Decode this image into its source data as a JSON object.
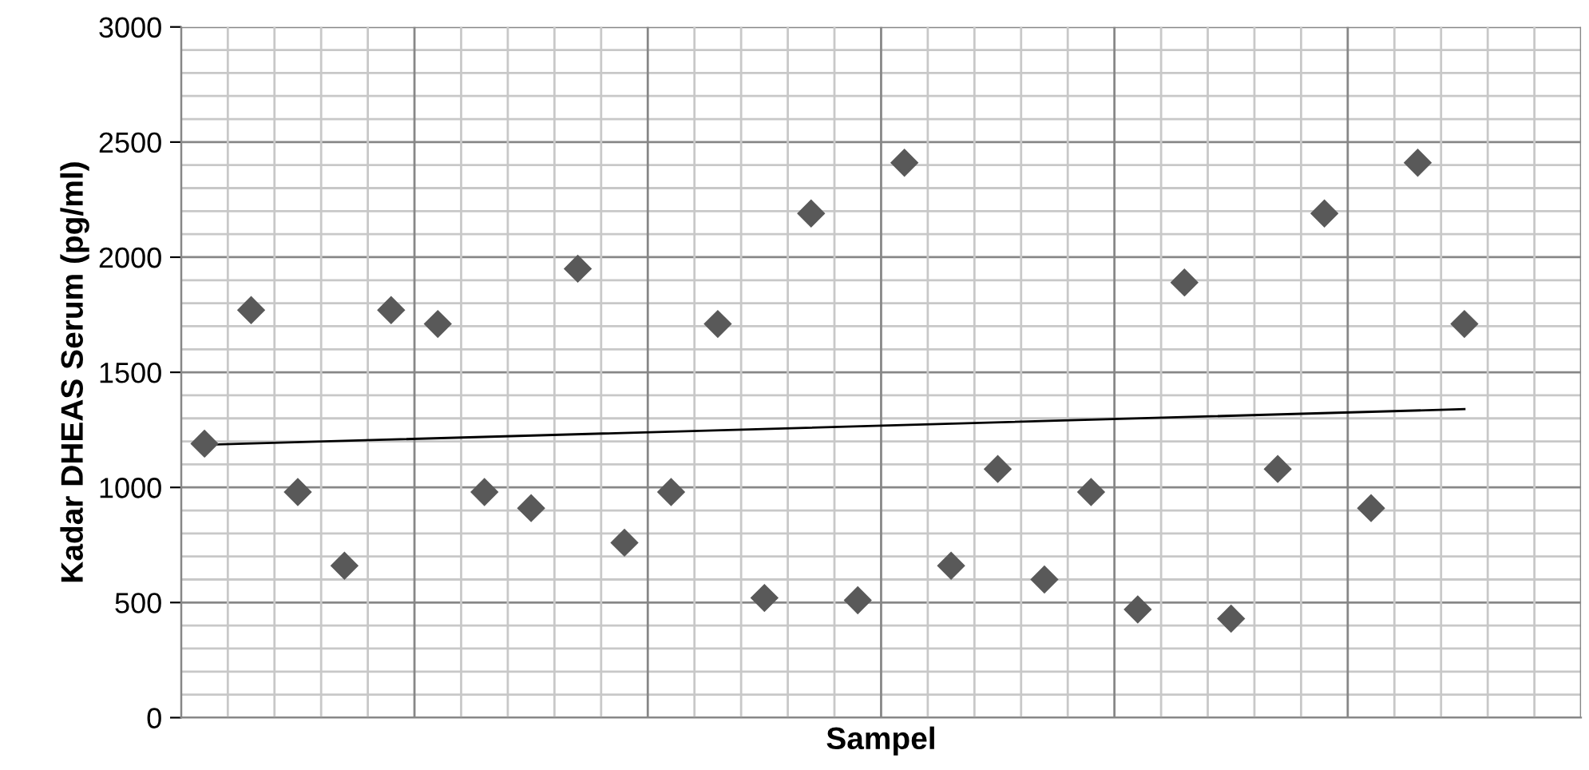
{
  "chart_data": {
    "type": "scatter",
    "xlabel": "Sampel",
    "ylabel": "Kadar DHEAS Serum (pg/ml)",
    "categories": [
      null,
      null,
      null,
      null,
      null,
      null,
      null,
      null,
      null,
      null,
      null,
      null,
      null,
      null,
      null,
      null,
      null,
      null,
      null,
      null,
      null,
      null,
      null,
      null,
      null,
      null,
      null,
      null,
      null,
      null
    ],
    "series": [
      {
        "color": "#595959",
        "marker": "diamond",
        "values": [
          1190,
          1770,
          980,
          660,
          1770,
          1710,
          980,
          910,
          1950,
          760,
          980,
          1710,
          520,
          2190,
          510,
          2410,
          660,
          1080,
          600,
          980,
          470,
          1890,
          430,
          1080,
          2190,
          910,
          2410,
          1710,
          null,
          null
        ]
      },
      {
        "type": "line",
        "color": "#000000",
        "marker": "none",
        "line_style": "solid",
        "values": [
          1185,
          null,
          null,
          null,
          null,
          null,
          null,
          null,
          null,
          null,
          null,
          null,
          null,
          null,
          null,
          null,
          null,
          null,
          null,
          null,
          null,
          null,
          null,
          null,
          null,
          null,
          null,
          1340,
          null,
          null
        ]
      }
    ],
    "ylim": [
      0,
      3000
    ],
    "yticks": [
      0,
      500,
      1000,
      1500,
      2000,
      2500,
      3000
    ],
    "grid": true,
    "legend": false,
    "tick_labels": "y"
  }
}
